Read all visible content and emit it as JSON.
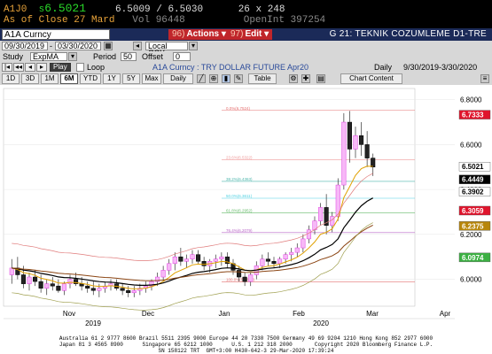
{
  "quote": {
    "ticker": "A1J0",
    "last_prefix": "s",
    "last": "6.5021",
    "bid_ask": "6.5009 / 6.5030",
    "size": "26 x 248",
    "as_of_label": "As of Close",
    "as_of_date": "27 Mard",
    "vol_label": "Vol",
    "vol": "96448",
    "openint_label": "OpenInt",
    "openint": "397254"
  },
  "titlebar": {
    "security": "A1A Curncy",
    "btn1_num": "96)",
    "btn1": "Actions ▾",
    "btn2_num": "97)",
    "btn2": "Edit ▾",
    "graph_title": "G 21: TEKNIK COZUMLEME D1-TRE"
  },
  "row2": {
    "start_date": "09/30/2019",
    "end_date": "03/30/2020",
    "currency": "Local CCY"
  },
  "row3": {
    "study_label": "Study",
    "study": "ExpMA",
    "period_label": "Period",
    "period": "50",
    "offset_label": "Offset",
    "offset": "0"
  },
  "row4": {
    "play": "Play",
    "loop": "Loop",
    "instrument": "A1A Curncy : TRY DOLLAR FUTURE Apr20",
    "freq": "Daily",
    "range": "9/30/2019-3/30/2020"
  },
  "tabs": [
    "1D",
    "3D",
    "1M",
    "6M",
    "YTD",
    "1Y",
    "5Y",
    "Max"
  ],
  "selected_tab": "6M",
  "row5": {
    "daily": "Daily",
    "table": "Table",
    "chart_content": "Chart Content"
  },
  "chart_data": {
    "type": "candlestick",
    "x_labels": [
      "Nov",
      "Dec",
      "Jan",
      "Feb",
      "Mar",
      "Apr"
    ],
    "year_labels": [
      "2019",
      "2020"
    ],
    "ylim": [
      5.88,
      6.85
    ],
    "y_ticks": [
      "6.8000",
      "6.6000",
      "6.4000",
      "6.2000",
      "6.0000"
    ],
    "price_tags": [
      {
        "label": "6.7333",
        "value": 6.7333,
        "color": "#e0142c"
      },
      {
        "label": "6.5021",
        "value": 6.5021,
        "color": "#ffffff"
      },
      {
        "label": "6.4449",
        "value": 6.4449,
        "color": "#000000"
      },
      {
        "label": "6.3902",
        "value": 6.3902,
        "color": "#ffffff"
      },
      {
        "label": "6.3059",
        "value": 6.3059,
        "color": "#e0142c"
      },
      {
        "label": "6.2375",
        "value": 6.2375,
        "color": "#b8860b"
      },
      {
        "label": "6.0974",
        "value": 6.0974,
        "color": "#3cb043"
      }
    ],
    "fib_labels": [
      "0.0%(6.7524)",
      "23.6%(6.5322)",
      "38.2%(6.4363)",
      "50.0%(6.3611)",
      "61.8%(6.2952)",
      "76.4%(6.2079)",
      "100.0%(5.9886)"
    ],
    "fib_levels": [
      6.7524,
      6.5322,
      6.4363,
      6.3611,
      6.2952,
      6.2079,
      5.9886
    ],
    "candles": [
      [
        6.02,
        6.09,
        5.98,
        6.05
      ],
      [
        6.05,
        6.1,
        6.0,
        6.02
      ],
      [
        6.02,
        6.06,
        5.96,
        5.98
      ],
      [
        5.98,
        6.03,
        5.95,
        6.01
      ],
      [
        6.01,
        6.04,
        5.97,
        5.99
      ],
      [
        5.99,
        6.02,
        5.94,
        5.96
      ],
      [
        5.96,
        6.0,
        5.93,
        5.98
      ],
      [
        5.98,
        6.01,
        5.95,
        5.97
      ],
      [
        5.97,
        6.0,
        5.94,
        5.95
      ],
      [
        5.95,
        5.99,
        5.93,
        5.98
      ],
      [
        5.98,
        6.02,
        5.96,
        6.0
      ],
      [
        6.0,
        6.03,
        5.97,
        5.98
      ],
      [
        5.98,
        6.01,
        5.95,
        5.97
      ],
      [
        5.97,
        5.99,
        5.94,
        5.96
      ],
      [
        5.96,
        5.99,
        5.93,
        5.95
      ],
      [
        5.95,
        5.98,
        5.92,
        5.96
      ],
      [
        5.96,
        5.99,
        5.94,
        5.97
      ],
      [
        5.97,
        6.0,
        5.95,
        5.98
      ],
      [
        5.98,
        6.0,
        5.95,
        5.96
      ],
      [
        5.96,
        5.98,
        5.93,
        5.95
      ],
      [
        5.95,
        5.97,
        5.92,
        5.94
      ],
      [
        5.94,
        5.97,
        5.92,
        5.95
      ],
      [
        5.95,
        5.98,
        5.93,
        5.96
      ],
      [
        5.96,
        5.99,
        5.94,
        5.97
      ],
      [
        5.97,
        6.0,
        5.95,
        5.99
      ],
      [
        5.99,
        6.03,
        5.97,
        6.01
      ],
      [
        6.01,
        6.06,
        5.99,
        6.04
      ],
      [
        6.04,
        6.09,
        6.02,
        6.07
      ],
      [
        6.07,
        6.12,
        6.04,
        6.1
      ],
      [
        6.1,
        6.14,
        6.06,
        6.08
      ],
      [
        6.08,
        6.11,
        6.05,
        6.09
      ],
      [
        6.09,
        6.13,
        6.07,
        6.11
      ],
      [
        6.11,
        6.13,
        6.07,
        6.08
      ],
      [
        6.08,
        6.1,
        6.04,
        6.06
      ],
      [
        6.06,
        6.09,
        6.03,
        6.08
      ],
      [
        6.08,
        6.11,
        6.05,
        6.09
      ],
      [
        6.09,
        6.12,
        6.06,
        6.1
      ],
      [
        6.1,
        6.12,
        6.05,
        6.07
      ],
      [
        6.07,
        6.09,
        6.02,
        6.04
      ],
      [
        6.04,
        6.06,
        5.99,
        6.01
      ],
      [
        6.01,
        6.03,
        5.97,
        5.99
      ],
      [
        5.99,
        6.03,
        5.97,
        6.02
      ],
      [
        6.02,
        6.08,
        6.0,
        6.06
      ],
      [
        6.06,
        6.11,
        6.04,
        6.09
      ],
      [
        6.09,
        6.12,
        6.06,
        6.08
      ],
      [
        6.08,
        6.1,
        6.05,
        6.07
      ],
      [
        6.07,
        6.1,
        6.05,
        6.09
      ],
      [
        6.09,
        6.12,
        6.07,
        6.11
      ],
      [
        6.11,
        6.14,
        6.08,
        6.12
      ],
      [
        6.12,
        6.16,
        6.1,
        6.14
      ],
      [
        6.14,
        6.2,
        6.12,
        6.18
      ],
      [
        6.18,
        6.24,
        6.16,
        6.22
      ],
      [
        6.22,
        6.28,
        6.2,
        6.26
      ],
      [
        6.26,
        6.34,
        6.24,
        6.32
      ],
      [
        6.32,
        6.38,
        6.2,
        6.24
      ],
      [
        6.24,
        6.3,
        6.21,
        6.28
      ],
      [
        6.28,
        6.45,
        6.26,
        6.42
      ],
      [
        6.42,
        6.74,
        6.4,
        6.7
      ],
      [
        6.7,
        6.75,
        6.52,
        6.58
      ],
      [
        6.58,
        6.68,
        6.54,
        6.64
      ],
      [
        6.64,
        6.7,
        6.55,
        6.6
      ],
      [
        6.6,
        6.66,
        6.5,
        6.54
      ],
      [
        6.54,
        6.56,
        6.46,
        6.5
      ]
    ]
  },
  "footer": {
    "line1": "Australia 61 2 9777 8600 Brazil 5511 2395 9000 Europe 44 20 7330 7500 Germany 49 69 9204 1210 Hong Kong 852 2977 6000",
    "line2": "Japan 81 3 4565 8900      Singapore 65 6212 1000      U.S. 1 212 318 2000       Copyright 2020 Bloomberg Finance L.P.",
    "line3": "SN 158122 TRT  GMT+3:00 H430-642-3 29-Mar-2020 17:39:24"
  }
}
